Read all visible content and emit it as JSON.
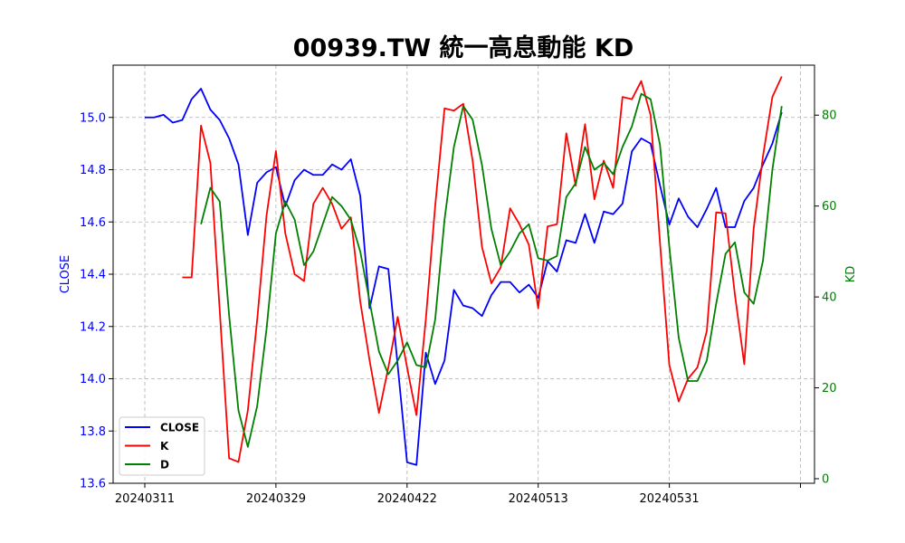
{
  "chart_data": {
    "type": "line",
    "title": "00939.TW 統一高息動能 KD",
    "ylabel_left": "CLOSE",
    "ylabel_right": "KD",
    "ylim_left": [
      13.6,
      15.2
    ],
    "ylim_right": [
      -1,
      91
    ],
    "yticks_left": [
      "13.6",
      "13.8",
      "14.0",
      "14.2",
      "14.4",
      "14.6",
      "14.8",
      "15.0"
    ],
    "yticks_right": [
      "0",
      "20",
      "40",
      "60",
      "80"
    ],
    "xtick_labels": [
      {
        "index": 0,
        "label": "20240311"
      },
      {
        "index": 14,
        "label": "20240329"
      },
      {
        "index": 28,
        "label": "20240422"
      },
      {
        "index": 42,
        "label": "20240513"
      },
      {
        "index": 56,
        "label": "20240531"
      },
      {
        "index": 70,
        "label": ""
      }
    ],
    "grid": true,
    "legend_position": "bottom-left",
    "colors": {
      "close": "#0000ff",
      "k": "#ff0000",
      "d": "#008000"
    },
    "series": [
      {
        "name": "CLOSE",
        "axis": "left",
        "values": [
          15.0,
          15.0,
          15.01,
          14.98,
          14.99,
          15.07,
          15.11,
          15.03,
          14.99,
          14.92,
          14.82,
          14.55,
          14.75,
          14.79,
          14.81,
          14.66,
          14.76,
          14.8,
          14.78,
          14.78,
          14.82,
          14.8,
          14.84,
          14.7,
          14.27,
          14.43,
          14.42,
          14.05,
          13.68,
          13.67,
          14.1,
          13.98,
          14.07,
          14.34,
          14.28,
          14.27,
          14.24,
          14.32,
          14.37,
          14.37,
          14.33,
          14.36,
          14.31,
          14.45,
          14.41,
          14.53,
          14.52,
          14.63,
          14.52,
          14.64,
          14.63,
          14.67,
          14.87,
          14.92,
          14.9,
          14.74,
          14.59,
          14.69,
          14.62,
          14.58,
          14.65,
          14.73,
          14.58,
          14.58,
          14.68,
          14.73,
          14.82,
          14.9,
          15.02
        ]
      },
      {
        "name": "K",
        "axis": "right",
        "values": [
          null,
          null,
          null,
          null,
          44.3,
          44.3,
          77.7,
          69.5,
          37.0,
          4.5,
          3.7,
          15.0,
          35.0,
          58.0,
          72.1,
          54.0,
          45.0,
          43.5,
          60.5,
          64.0,
          60.5,
          55.0,
          57.5,
          39.0,
          26.0,
          14.5,
          24.5,
          35.6,
          24.5,
          14.0,
          35.0,
          60.0,
          81.5,
          81.0,
          82.5,
          70.0,
          51.0,
          43.0,
          46.5,
          59.5,
          56.0,
          51.5,
          37.5,
          55.5,
          56.0,
          76.0,
          64.5,
          78.0,
          61.5,
          70.0,
          64.0,
          84.0,
          83.5,
          87.5,
          80.0,
          52.0,
          25.0,
          17.0,
          22.0,
          24.5,
          32.5,
          58.6,
          58.4,
          40.5,
          25.2,
          55.0,
          71.0,
          84.0,
          88.5
        ]
      },
      {
        "name": "D",
        "axis": "right",
        "values": [
          null,
          null,
          null,
          null,
          null,
          null,
          56.0,
          64.0,
          61.0,
          36.0,
          15.0,
          7.0,
          16.0,
          33.0,
          54.0,
          61.0,
          57.0,
          47.0,
          50.0,
          56.0,
          62.0,
          60.0,
          57.0,
          50.0,
          39.0,
          28.0,
          23.0,
          26.0,
          30.0,
          25.0,
          24.5,
          35.0,
          57.0,
          73.0,
          82.0,
          79.0,
          69.0,
          55.0,
          47.0,
          50.0,
          54.0,
          56.0,
          48.5,
          48.0,
          49.0,
          62.0,
          65.0,
          73.0,
          68.0,
          69.5,
          67.0,
          73.0,
          77.5,
          84.7,
          83.5,
          73.5,
          51.0,
          31.0,
          21.5,
          21.5,
          26.0,
          38.5,
          49.5,
          52.0,
          41.0,
          38.5,
          48.0,
          68.0,
          82.0
        ]
      }
    ]
  }
}
